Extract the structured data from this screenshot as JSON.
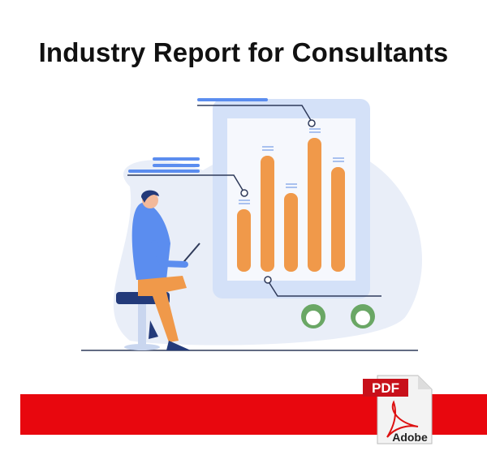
{
  "title": "Industry Report for Consultants",
  "pdf_icon": {
    "badge": "PDF",
    "brand": "Adobe"
  },
  "colors": {
    "band": "#e8070e",
    "bars": "#f0994a",
    "blob": "#e9eef8",
    "accent": "#5b8def",
    "shirt": "#5b8def",
    "gauge": "#6aa765"
  }
}
